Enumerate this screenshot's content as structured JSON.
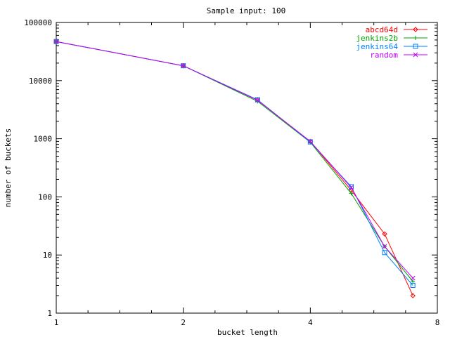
{
  "chart_data": {
    "type": "line",
    "title": "Sample input: 100",
    "xlabel": "bucket length",
    "ylabel": "number of buckets",
    "xscale": "log2",
    "yscale": "log10",
    "xlim": [
      1,
      8
    ],
    "ylim": [
      1,
      100000
    ],
    "xticks": [
      1,
      2,
      4,
      8
    ],
    "yticks": [
      1,
      10,
      100,
      1000,
      10000,
      100000
    ],
    "xtick_labels": [
      "1",
      "2",
      "4",
      "8"
    ],
    "ytick_labels": [
      "1",
      "10",
      "100",
      "1000",
      "10000",
      "100000"
    ],
    "grid": false,
    "legend_position": "top-right",
    "x": [
      1,
      2,
      3,
      4,
      5,
      6,
      7
    ],
    "series": [
      {
        "name": "abcd64d",
        "color": "#ff0000",
        "marker": "diamond",
        "values": [
          47000,
          18000,
          4600,
          900,
          130,
          23,
          2
        ]
      },
      {
        "name": "jenkins2b",
        "color": "#00a000",
        "marker": "plus",
        "values": [
          47000,
          18000,
          4400,
          870,
          115,
          14,
          3.5
        ]
      },
      {
        "name": "jenkins64",
        "color": "#0080ff",
        "marker": "square",
        "values": [
          47000,
          18000,
          4700,
          880,
          150,
          11,
          3
        ]
      },
      {
        "name": "random",
        "color": "#c000ff",
        "marker": "x",
        "values": [
          47000,
          18000,
          4600,
          900,
          145,
          14,
          4
        ]
      }
    ]
  }
}
